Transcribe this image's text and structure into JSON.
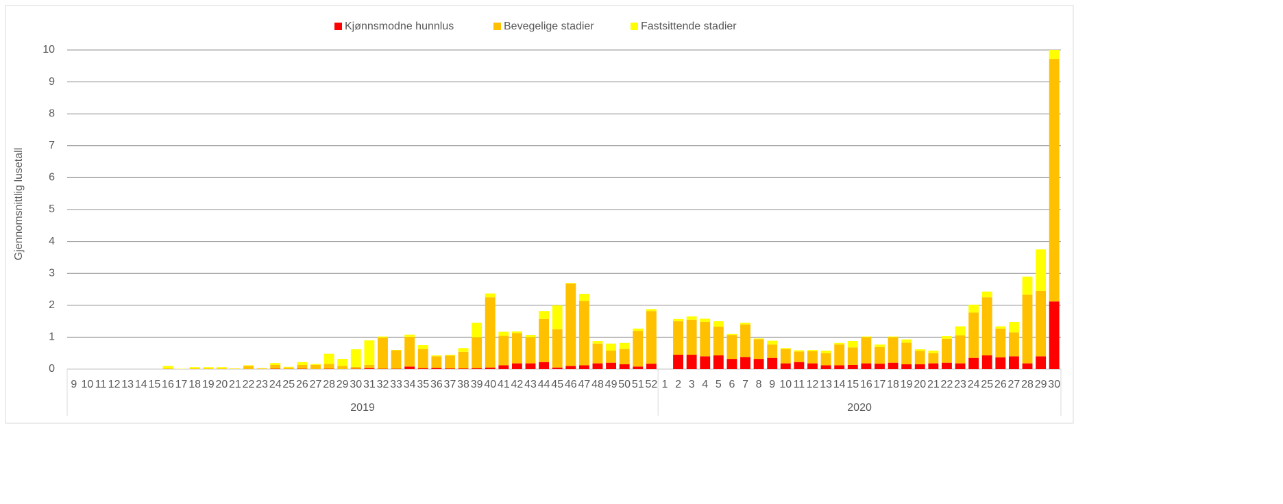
{
  "chart_data": {
    "type": "stacked_bar",
    "y_label": "Gjennomsnittlig lusetall",
    "groups": [
      {
        "name": "2019",
        "categories": [
          "9",
          "10",
          "11",
          "12",
          "13",
          "14",
          "15",
          "16",
          "17",
          "18",
          "19",
          "20",
          "21",
          "22",
          "23",
          "24",
          "25",
          "26",
          "27",
          "28",
          "29",
          "30",
          "31",
          "32",
          "33",
          "34",
          "35",
          "36",
          "37",
          "38",
          "39",
          "40",
          "41",
          "42",
          "43",
          "44",
          "45",
          "46",
          "47",
          "48",
          "49",
          "50",
          "51",
          "52"
        ]
      },
      {
        "name": "2020",
        "categories": [
          "1",
          "2",
          "3",
          "4",
          "5",
          "6",
          "7",
          "8",
          "9",
          "10",
          "11",
          "12",
          "13",
          "14",
          "15",
          "16",
          "17",
          "18",
          "19",
          "20",
          "21",
          "22",
          "23",
          "24",
          "25",
          "26",
          "27",
          "28",
          "29",
          "30"
        ]
      }
    ],
    "series": [
      {
        "name": "Kjønnsmodne hunnlus",
        "color": "#ff0000",
        "values": [
          0,
          0,
          0,
          0,
          0,
          0,
          0,
          0,
          0,
          0,
          0,
          0,
          0,
          0,
          0,
          0.01,
          0,
          0.01,
          0,
          0.01,
          0,
          0.01,
          0.03,
          0.01,
          0.01,
          0.08,
          0.03,
          0.04,
          0.02,
          0.02,
          0.03,
          0.05,
          0.12,
          0.18,
          0.18,
          0.22,
          0.05,
          0.1,
          0.12,
          0.18,
          0.2,
          0.15,
          0.08,
          0.17,
          0,
          0.45,
          0.45,
          0.4,
          0.43,
          0.32,
          0.38,
          0.32,
          0.35,
          0.18,
          0.22,
          0.18,
          0.12,
          0.12,
          0.13,
          0.18,
          0.17,
          0.2,
          0.15,
          0.15,
          0.18,
          0.2,
          0.18,
          0.35,
          0.43,
          0.37,
          0.4,
          0.18,
          0.4,
          2.12
        ]
      },
      {
        "name": "Bevegelige stadier",
        "color": "#ffc000",
        "values": [
          0,
          0,
          0,
          0,
          0,
          0,
          0,
          0.02,
          0,
          0.02,
          0.02,
          0.02,
          0.01,
          0.1,
          0.02,
          0.12,
          0.05,
          0.12,
          0.13,
          0.15,
          0.1,
          0.06,
          0.1,
          0.98,
          0.58,
          0.93,
          0.6,
          0.36,
          0.4,
          0.52,
          0.97,
          2.2,
          0.92,
          0.95,
          0.82,
          1.35,
          1.2,
          2.58,
          2.02,
          0.62,
          0.38,
          0.48,
          1.12,
          1.65,
          0,
          1.05,
          1.1,
          1.08,
          0.9,
          0.75,
          1.02,
          0.62,
          0.42,
          0.45,
          0.33,
          0.38,
          0.38,
          0.65,
          0.55,
          0.82,
          0.52,
          0.8,
          0.68,
          0.42,
          0.32,
          0.75,
          0.88,
          1.42,
          1.82,
          0.9,
          0.75,
          2.15,
          2.05,
          7.6
        ]
      },
      {
        "name": "Fastsittende stadier",
        "color": "#ffff00",
        "values": [
          0,
          0,
          0,
          0,
          0,
          0,
          0,
          0.08,
          0.01,
          0.04,
          0.04,
          0.04,
          0.01,
          0.02,
          0.01,
          0.06,
          0.02,
          0.09,
          0.03,
          0.32,
          0.22,
          0.55,
          0.77,
          0.03,
          0.01,
          0.07,
          0.12,
          0.03,
          0.03,
          0.12,
          0.45,
          0.12,
          0.13,
          0.05,
          0.07,
          0.25,
          0.75,
          0.02,
          0.22,
          0.08,
          0.22,
          0.19,
          0.07,
          0.06,
          0,
          0.07,
          0.1,
          0.1,
          0.17,
          0.03,
          0.05,
          0.02,
          0.12,
          0.03,
          0.04,
          0.04,
          0.08,
          0.05,
          0.2,
          0.02,
          0.08,
          0.02,
          0.1,
          0.05,
          0.08,
          0.08,
          0.28,
          0.25,
          0.18,
          0.07,
          0.33,
          0.57,
          1.3,
          0.28
        ]
      }
    ],
    "ylim": [
      0,
      10
    ],
    "yticks": [
      0,
      1,
      2,
      3,
      4,
      5,
      6,
      7,
      8,
      9,
      10
    ],
    "grid": true,
    "legend": "top"
  }
}
